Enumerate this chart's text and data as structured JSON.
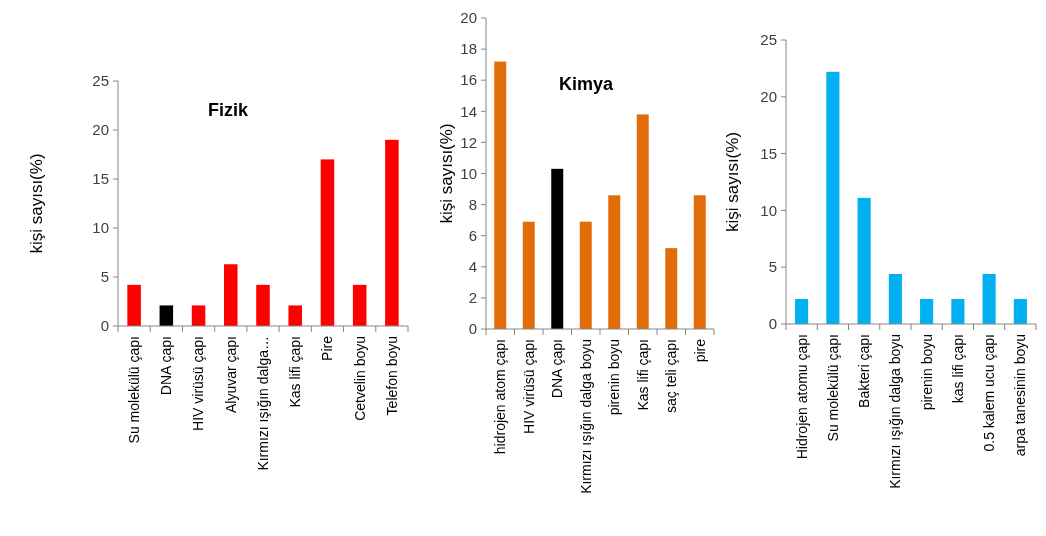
{
  "chart_data": [
    {
      "type": "bar",
      "title": "Fizik",
      "ylabel": "kişi sayısı(%)",
      "categories": [
        "Su molekülü çapı",
        "DNA çapı",
        "HIV virüsü çapı",
        "Alyuvar çapı",
        "Kırmızı ışığın dalga…",
        "Kas lifi çapı",
        "Pire",
        "Cetvelin boyu",
        "Telefon boyu"
      ],
      "values": [
        4.2,
        2.1,
        2.1,
        6.3,
        4.2,
        2.1,
        17,
        4.2,
        19
      ],
      "colors": [
        "#ff0000",
        "#000000",
        "#ff0000",
        "#ff0000",
        "#ff0000",
        "#ff0000",
        "#ff0000",
        "#ff0000",
        "#ff0000"
      ],
      "ylim": [
        0,
        25
      ],
      "yticks": [
        0,
        5,
        10,
        15,
        20,
        25
      ]
    },
    {
      "type": "bar",
      "title": "Kimya",
      "ylabel": "kişi sayısı(%)",
      "categories": [
        "hidrojen atom çapı",
        "HIV virüsü çapı",
        "DNA çapı",
        "Kırmızı ışığın dalga boyu",
        "pirenin boyu",
        "Kas  lifi çapı",
        "saç teli çapı",
        "pire"
      ],
      "values": [
        17.2,
        6.9,
        10.3,
        6.9,
        8.6,
        13.8,
        5.2,
        8.6
      ],
      "colors": [
        "#e36c0a",
        "#e36c0a",
        "#000000",
        "#e36c0a",
        "#e36c0a",
        "#e36c0a",
        "#e36c0a",
        "#e36c0a"
      ],
      "ylim": [
        0,
        20
      ],
      "yticks": [
        0,
        2,
        4,
        6,
        8,
        10,
        12,
        14,
        16,
        18,
        20
      ]
    },
    {
      "type": "bar",
      "ylabel": "kişi sayısı(%)",
      "categories": [
        "Hidrojen atomu çapı",
        "Su molekülü çapı",
        "Bakteri çapı",
        "Kırmızı ışığın dalga boyu",
        "pirenin boyu",
        "kas lifi çapı",
        "0.5 kalem ucu çapı",
        "arpa tanesinin boyu"
      ],
      "values": [
        2.2,
        22.2,
        11.1,
        4.4,
        2.2,
        2.2,
        4.4,
        2.2
      ],
      "color": "#00b0f0",
      "ylim": [
        0,
        25
      ],
      "yticks": [
        0,
        5,
        10,
        15,
        20,
        25
      ]
    }
  ]
}
